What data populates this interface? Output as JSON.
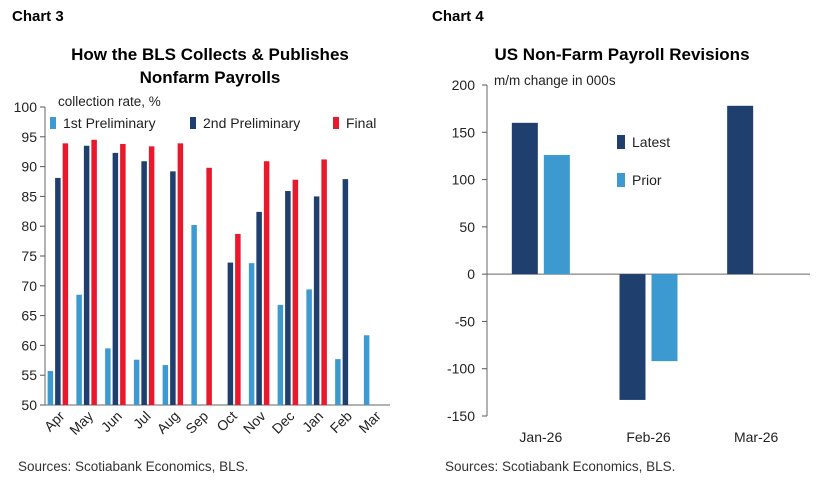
{
  "chart3": {
    "label": "Chart 3",
    "title_line1": "How the BLS Collects & Publishes",
    "title_line2": "Nonfarm Payrolls",
    "source": "Sources: Scotiabank Economics, BLS."
  },
  "chart4": {
    "label": "Chart 4",
    "title": "US Non-Farm Payroll Revisions",
    "source": "Sources: Scotiabank Economics, BLS."
  },
  "colors": {
    "first_preliminary": "#3d9ad1",
    "second_preliminary": "#1f3f6e",
    "final": "#e8192c",
    "latest": "#1f3f6e",
    "prior": "#3d9ad1"
  },
  "chart_data": [
    {
      "type": "bar",
      "title": "How the BLS Collects & Publishes Nonfarm Payrolls",
      "ylabel": "collection rate, %",
      "ylim": [
        50,
        100
      ],
      "yticks": [
        50,
        55,
        60,
        65,
        70,
        75,
        80,
        85,
        90,
        95,
        100
      ],
      "grid": false,
      "legend": "top",
      "categories": [
        "Apr",
        "May",
        "Jun",
        "Jul",
        "Aug",
        "Sep",
        "Oct",
        "Nov",
        "Dec",
        "Jan",
        "Feb",
        "Mar"
      ],
      "series": [
        {
          "name": "1st Preliminary",
          "values": [
            55.7,
            68.5,
            59.5,
            57.6,
            56.7,
            80.2,
            null,
            73.8,
            66.8,
            69.4,
            57.7,
            61.7
          ]
        },
        {
          "name": "2nd Preliminary",
          "values": [
            88.1,
            93.5,
            92.3,
            90.9,
            89.2,
            null,
            73.9,
            82.4,
            85.9,
            85.0,
            87.9,
            null
          ]
        },
        {
          "name": "Final",
          "values": [
            93.9,
            94.5,
            93.8,
            93.4,
            93.9,
            89.8,
            78.7,
            90.9,
            87.8,
            91.2,
            null,
            null
          ]
        }
      ]
    },
    {
      "type": "bar",
      "title": "US Non-Farm Payroll Revisions",
      "ylabel": "m/m change in 000s",
      "ylim": [
        -150,
        200
      ],
      "yticks": [
        -150,
        -100,
        -50,
        0,
        50,
        100,
        150,
        200
      ],
      "grid": false,
      "legend": "inside",
      "categories": [
        "Jan-26",
        "Feb-26",
        "Mar-26"
      ],
      "series": [
        {
          "name": "Latest",
          "values": [
            160,
            -133,
            178
          ]
        },
        {
          "name": "Prior",
          "values": [
            126,
            -92,
            null
          ]
        }
      ]
    }
  ]
}
